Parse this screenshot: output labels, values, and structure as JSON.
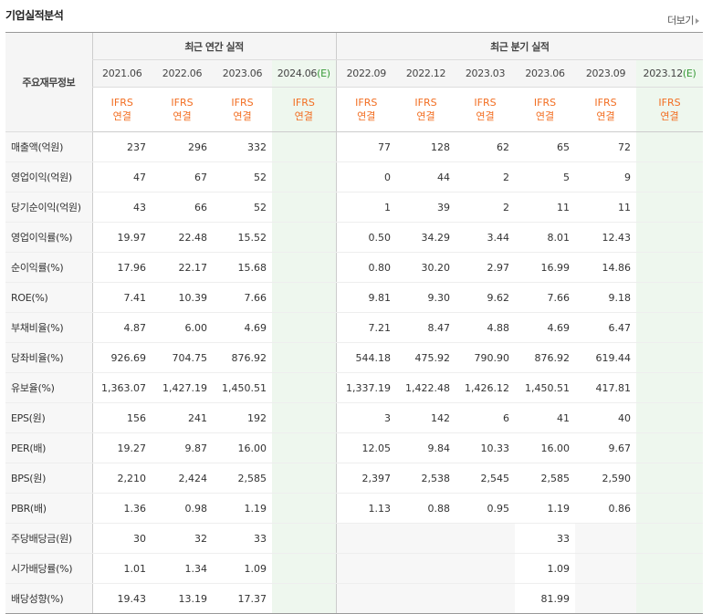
{
  "header": {
    "title": "기업실적분석",
    "more_label": "더보기"
  },
  "table": {
    "corner_label": "주요재무정보",
    "group_annual": "최근 연간 실적",
    "group_quarter": "최근 분기 실적",
    "annual_periods": [
      "2021.06",
      "2022.06",
      "2023.06",
      "2024.06"
    ],
    "annual_est_mark": "(E)",
    "quarter_periods": [
      "2022.09",
      "2022.12",
      "2023.03",
      "2023.06",
      "2023.09",
      "2023.12"
    ],
    "quarter_est_mark": "(E)",
    "std_line1": "IFRS",
    "std_line2": "연결",
    "rows": [
      {
        "label": "매출액(억원)",
        "annual": [
          "237",
          "296",
          "332",
          ""
        ],
        "quarter": [
          "77",
          "128",
          "62",
          "65",
          "72",
          ""
        ]
      },
      {
        "label": "영업이익(억원)",
        "annual": [
          "47",
          "67",
          "52",
          ""
        ],
        "quarter": [
          "0",
          "44",
          "2",
          "5",
          "9",
          ""
        ]
      },
      {
        "label": "당기순이익(억원)",
        "annual": [
          "43",
          "66",
          "52",
          ""
        ],
        "quarter": [
          "1",
          "39",
          "2",
          "11",
          "11",
          ""
        ]
      },
      {
        "label": "영업이익률(%)",
        "annual": [
          "19.97",
          "22.48",
          "15.52",
          ""
        ],
        "quarter": [
          "0.50",
          "34.29",
          "3.44",
          "8.01",
          "12.43",
          ""
        ]
      },
      {
        "label": "순이익률(%)",
        "annual": [
          "17.96",
          "22.17",
          "15.68",
          ""
        ],
        "quarter": [
          "0.80",
          "30.20",
          "2.97",
          "16.99",
          "14.86",
          ""
        ]
      },
      {
        "label": "ROE(%)",
        "annual": [
          "7.41",
          "10.39",
          "7.66",
          ""
        ],
        "quarter": [
          "9.81",
          "9.30",
          "9.62",
          "7.66",
          "9.18",
          ""
        ]
      },
      {
        "label": "부채비율(%)",
        "annual": [
          "4.87",
          "6.00",
          "4.69",
          ""
        ],
        "quarter": [
          "7.21",
          "8.47",
          "4.88",
          "4.69",
          "6.47",
          ""
        ]
      },
      {
        "label": "당좌비율(%)",
        "annual": [
          "926.69",
          "704.75",
          "876.92",
          ""
        ],
        "quarter": [
          "544.18",
          "475.92",
          "790.90",
          "876.92",
          "619.44",
          ""
        ]
      },
      {
        "label": "유보율(%)",
        "annual": [
          "1,363.07",
          "1,427.19",
          "1,450.51",
          ""
        ],
        "quarter": [
          "1,337.19",
          "1,422.48",
          "1,426.12",
          "1,450.51",
          "417.81",
          ""
        ]
      },
      {
        "label": "EPS(원)",
        "annual": [
          "156",
          "241",
          "192",
          ""
        ],
        "quarter": [
          "3",
          "142",
          "6",
          "41",
          "40",
          ""
        ]
      },
      {
        "label": "PER(배)",
        "annual": [
          "19.27",
          "9.87",
          "16.00",
          ""
        ],
        "quarter": [
          "12.05",
          "9.84",
          "10.33",
          "16.00",
          "9.67",
          ""
        ]
      },
      {
        "label": "BPS(원)",
        "annual": [
          "2,210",
          "2,424",
          "2,585",
          ""
        ],
        "quarter": [
          "2,397",
          "2,538",
          "2,545",
          "2,585",
          "2,590",
          ""
        ]
      },
      {
        "label": "PBR(배)",
        "annual": [
          "1.36",
          "0.98",
          "1.19",
          ""
        ],
        "quarter": [
          "1.13",
          "0.88",
          "0.95",
          "1.19",
          "0.86",
          ""
        ]
      },
      {
        "label": "주당배당금(원)",
        "annual": [
          "30",
          "32",
          "33",
          ""
        ],
        "quarter": [
          "",
          "",
          "",
          "33",
          "",
          ""
        ]
      },
      {
        "label": "시가배당률(%)",
        "annual": [
          "1.01",
          "1.34",
          "1.09",
          ""
        ],
        "quarter": [
          "",
          "",
          "",
          "1.09",
          "",
          ""
        ]
      },
      {
        "label": "배당성향(%)",
        "annual": [
          "19.43",
          "13.19",
          "17.37",
          ""
        ],
        "quarter": [
          "",
          "",
          "",
          "81.99",
          "",
          ""
        ]
      }
    ]
  }
}
